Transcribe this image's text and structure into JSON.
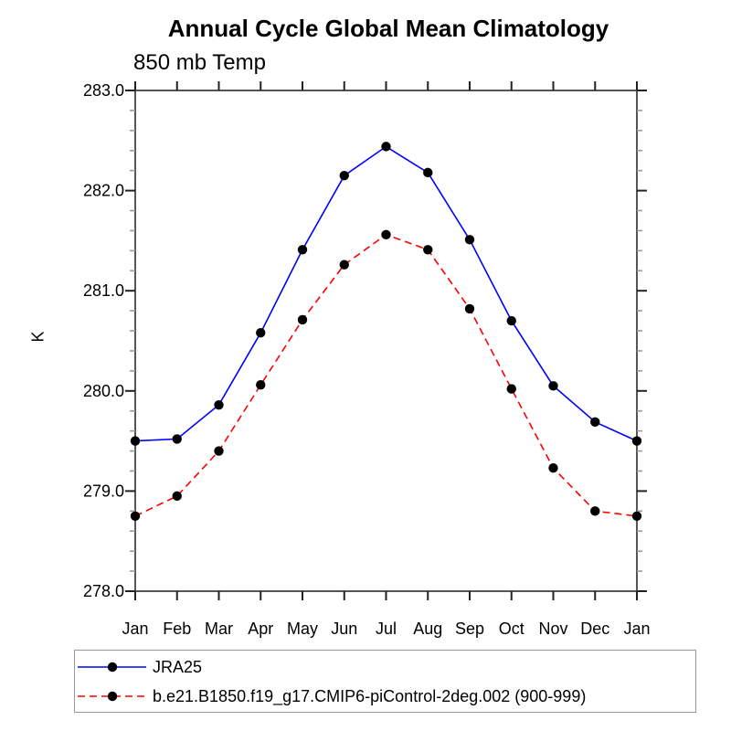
{
  "chart_data": {
    "type": "line",
    "title": "Annual Cycle Global Mean Climatology",
    "subtitle": "850 mb Temp",
    "ylabel": "K",
    "categories": [
      "Jan",
      "Feb",
      "Mar",
      "Apr",
      "May",
      "Jun",
      "Jul",
      "Aug",
      "Sep",
      "Oct",
      "Nov",
      "Dec",
      "Jan"
    ],
    "ylim": [
      278.0,
      283.0
    ],
    "ytick_step": 1.0,
    "ytick_minor_step": 0.2,
    "ytick_label_format": "one_decimal",
    "grid": false,
    "legend_position": "bottom-left",
    "axis_color": "#555555",
    "major_tick_color": "#222222",
    "minor_tick_color": "#999999",
    "series": [
      {
        "name": "JRA25",
        "color": "#0000ff",
        "line_style": "solid",
        "marker": "filled-circle",
        "marker_color": "#000000",
        "values": [
          279.5,
          279.52,
          279.86,
          280.58,
          281.41,
          282.15,
          282.44,
          282.18,
          281.51,
          280.7,
          280.05,
          279.69,
          279.5
        ]
      },
      {
        "name": "b.e21.B1850.f19_g17.CMIP6-piControl-2deg.002 (900-999)",
        "color": "#ff0000",
        "line_style": "dashed",
        "marker": "filled-circle",
        "marker_color": "#000000",
        "values": [
          278.75,
          278.95,
          279.4,
          280.06,
          280.71,
          281.26,
          281.56,
          281.41,
          280.82,
          280.02,
          279.23,
          278.8,
          278.75
        ]
      }
    ]
  }
}
